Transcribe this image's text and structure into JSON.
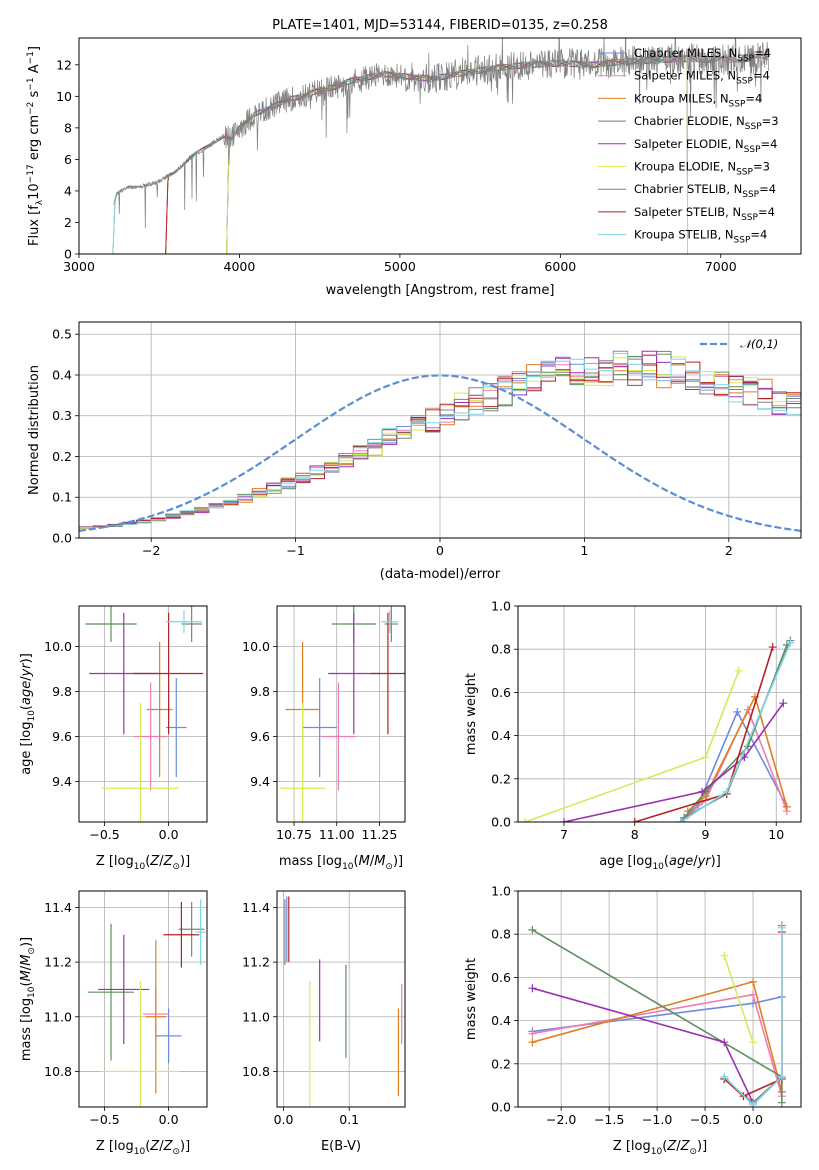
{
  "colors": {
    "chabrier_miles": "#6a8dde",
    "salpeter_miles": "#ee7db4",
    "kroupa_miles": "#e07f22",
    "chabrier_elodie": "#5e8f5e",
    "salpeter_elodie": "#9b30b4",
    "kroupa_elodie": "#d2ec5a",
    "chabrier_stelib": "#808080",
    "salpeter_stelib": "#b22222",
    "kroupa_stelib": "#7fd6e3",
    "normal": "#5b8fd4"
  },
  "chart_data": [
    {
      "id": "spectrum",
      "type": "line",
      "title": "PLATE=1401, MJD=53144, FIBERID=0135, z=0.258",
      "xlabel": "wavelength [Angstrom, rest frame]",
      "ylabel": "Flux [f",
      "ylabel_parts": {
        "pre": "Flux [f",
        "lam": "λ",
        "mid": "10",
        "exp": "−17",
        "post": " erg cm",
        "exp2": "−2",
        "post2": " s",
        "exp3": "−1",
        "post3": " A",
        "exp4": "−1",
        "end": "]"
      },
      "xlim": [
        3000,
        7500
      ],
      "ylim": [
        0,
        13.7
      ],
      "xticks": [
        "3000",
        "4000",
        "5000",
        "6000",
        "7000"
      ],
      "yticks": [
        "0",
        "2",
        "4",
        "6",
        "8",
        "10",
        "12"
      ],
      "data_continuum": [
        [
          3210,
          0
        ],
        [
          3215,
          3.2
        ],
        [
          3240,
          3.9
        ],
        [
          3300,
          4.2
        ],
        [
          3400,
          4.3
        ],
        [
          3500,
          4.6
        ],
        [
          3600,
          5.2
        ],
        [
          3700,
          6.2
        ],
        [
          3800,
          6.8
        ],
        [
          3900,
          7.5
        ],
        [
          3950,
          7.3
        ],
        [
          4000,
          8.0
        ],
        [
          4100,
          8.9
        ],
        [
          4200,
          9.3
        ],
        [
          4300,
          9.8
        ],
        [
          4400,
          10.0
        ],
        [
          4500,
          10.4
        ],
        [
          4600,
          10.6
        ],
        [
          4700,
          11.0
        ],
        [
          4800,
          11.2
        ],
        [
          4900,
          11.4
        ],
        [
          5000,
          11.3
        ],
        [
          5200,
          11.1
        ],
        [
          5400,
          11.5
        ],
        [
          5600,
          11.8
        ],
        [
          5800,
          12.0
        ],
        [
          6000,
          12.1
        ],
        [
          6200,
          12.0
        ],
        [
          6400,
          12.2
        ],
        [
          6600,
          12.3
        ],
        [
          6800,
          12.4
        ],
        [
          7000,
          12.3
        ],
        [
          7200,
          12.4
        ],
        [
          7300,
          12.5
        ]
      ],
      "series": [
        {
          "name": "Chabrier MILES",
          "nssp": "4",
          "color_key": "chabrier_miles",
          "start": 3540
        },
        {
          "name": "Salpeter MILES",
          "nssp": "4",
          "color_key": "salpeter_miles",
          "start": 3540
        },
        {
          "name": "Kroupa MILES",
          "nssp": "4",
          "color_key": "kroupa_miles",
          "start": 3540
        },
        {
          "name": "Chabrier ELODIE",
          "nssp": "3",
          "color_key": "chabrier_elodie",
          "start": 3920,
          "end": 6790
        },
        {
          "name": "Salpeter ELODIE",
          "nssp": "4",
          "color_key": "salpeter_elodie",
          "start": 3920,
          "end": 6790
        },
        {
          "name": "Kroupa ELODIE",
          "nssp": "3",
          "color_key": "kroupa_elodie",
          "start": 3920,
          "end": 6790
        },
        {
          "name": "Chabrier STELIB",
          "nssp": "4",
          "color_key": "chabrier_stelib",
          "start": 3210
        },
        {
          "name": "Salpeter STELIB",
          "nssp": "4",
          "color_key": "salpeter_stelib",
          "start": 3540
        },
        {
          "name": "Kroupa STELIB",
          "nssp": "4",
          "color_key": "kroupa_stelib",
          "start": 3210
        }
      ],
      "legend_loc": "lower-right"
    },
    {
      "id": "residuals",
      "type": "histogram",
      "xlabel": "(data-model)/error",
      "ylabel": "Normed distribution",
      "xlim": [
        -2.5,
        2.5
      ],
      "ylim": [
        0,
        0.53
      ],
      "xticks": [
        "−2",
        "−1",
        "0",
        "1",
        "2"
      ],
      "yticks": [
        "0.0",
        "0.1",
        "0.2",
        "0.3",
        "0.4",
        "0.5"
      ],
      "bin_width": 0.1,
      "base_profile": [
        0.025,
        0.028,
        0.031,
        0.036,
        0.041,
        0.047,
        0.054,
        0.061,
        0.069,
        0.078,
        0.088,
        0.098,
        0.11,
        0.122,
        0.135,
        0.149,
        0.163,
        0.178,
        0.194,
        0.21,
        0.226,
        0.243,
        0.259,
        0.276,
        0.292,
        0.308,
        0.323,
        0.337,
        0.351,
        0.364,
        0.375,
        0.386,
        0.395,
        0.403,
        0.409,
        0.414,
        0.417,
        0.419,
        0.419,
        0.417,
        0.414,
        0.409,
        0.403,
        0.395,
        0.386,
        0.375,
        0.364,
        0.351,
        0.337,
        0.323
      ],
      "legend": "𝒩(0,1)",
      "legend_loc": "upper-right"
    },
    {
      "id": "age_vs_Z",
      "type": "errorbar",
      "xlabel": "Z [log",
      "ylabel": "age  [log",
      "xlim": [
        -0.7,
        0.3
      ],
      "ylim": [
        9.22,
        10.18
      ],
      "xticks": [
        "−0.5",
        "0.0"
      ],
      "yticks": [
        "9.4",
        "9.6",
        "9.8",
        "10.0"
      ],
      "points": [
        {
          "color_key": "chabrier_miles",
          "x": 0.06,
          "xerr": 0.08,
          "y": 9.64,
          "yerr": 0.22
        },
        {
          "color_key": "salpeter_miles",
          "x": -0.14,
          "xerr": 0.13,
          "y": 9.6,
          "yerr": 0.24
        },
        {
          "color_key": "kroupa_miles",
          "x": -0.07,
          "xerr": 0.1,
          "y": 9.72,
          "yerr": 0.3
        },
        {
          "color_key": "chabrier_elodie",
          "x": -0.45,
          "xerr": 0.2,
          "y": 10.1,
          "yerr": 0.08
        },
        {
          "color_key": "salpeter_elodie",
          "x": -0.35,
          "xerr": 0.27,
          "y": 9.88,
          "yerr": 0.27
        },
        {
          "color_key": "kroupa_elodie",
          "x": -0.22,
          "xerr": 0.3,
          "y": 9.37,
          "yerr": 0.38
        },
        {
          "color_key": "chabrier_stelib",
          "x": 0.18,
          "xerr": 0.08,
          "y": 10.1,
          "yerr": 0.08
        },
        {
          "color_key": "salpeter_stelib",
          "x": 0.0,
          "xerr": 0.27,
          "y": 9.88,
          "yerr": 0.27
        },
        {
          "color_key": "kroupa_stelib",
          "x": 0.12,
          "xerr": 0.14,
          "y": 10.11,
          "yerr": 0.05
        }
      ]
    },
    {
      "id": "age_vs_mass",
      "type": "errorbar",
      "xlabel": "mass [log",
      "xlim": [
        10.65,
        11.4
      ],
      "ylim": [
        9.22,
        10.18
      ],
      "xticks": [
        "10.75",
        "11.00",
        "11.25"
      ],
      "yticks": [
        "9.4",
        "9.6",
        "9.8",
        "10.0"
      ],
      "points": [
        {
          "color_key": "chabrier_miles",
          "x": 10.9,
          "xerr": 0.1,
          "y": 9.64,
          "yerr": 0.22
        },
        {
          "color_key": "salpeter_miles",
          "x": 11.01,
          "xerr": 0.1,
          "y": 9.6,
          "yerr": 0.24
        },
        {
          "color_key": "kroupa_miles",
          "x": 10.8,
          "xerr": 0.1,
          "y": 9.72,
          "yerr": 0.3
        },
        {
          "color_key": "chabrier_elodie",
          "x": 11.1,
          "xerr": 0.13,
          "y": 10.1,
          "yerr": 0.08
        },
        {
          "color_key": "salpeter_elodie",
          "x": 11.1,
          "xerr": 0.15,
          "y": 9.88,
          "yerr": 0.27
        },
        {
          "color_key": "kroupa_elodie",
          "x": 10.8,
          "xerr": 0.13,
          "y": 9.37,
          "yerr": 0.38
        },
        {
          "color_key": "chabrier_stelib",
          "x": 11.32,
          "xerr": 0.04,
          "y": 10.1,
          "yerr": 0.08
        },
        {
          "color_key": "salpeter_stelib",
          "x": 11.3,
          "xerr": 0.1,
          "y": 9.88,
          "yerr": 0.27
        },
        {
          "color_key": "kroupa_stelib",
          "x": 11.31,
          "xerr": 0.05,
          "y": 10.11,
          "yerr": 0.05
        }
      ]
    },
    {
      "id": "weight_vs_age",
      "type": "line",
      "xlabel": "age  [log",
      "ylabel": "mass weight",
      "xlim": [
        6.35,
        10.35
      ],
      "ylim": [
        0,
        1.0
      ],
      "xticks": [
        "7",
        "8",
        "9",
        "10"
      ],
      "yticks": [
        "0.0",
        "0.2",
        "0.4",
        "0.6",
        "0.8",
        "1.0"
      ],
      "series": [
        {
          "color_key": "chabrier_miles",
          "x": [
            8.7,
            8.9,
            9.45,
            10.15
          ],
          "y": [
            0.02,
            0.08,
            0.51,
            0.07
          ]
        },
        {
          "color_key": "salpeter_miles",
          "x": [
            8.75,
            9.0,
            9.6,
            10.15
          ],
          "y": [
            0.03,
            0.1,
            0.52,
            0.05
          ]
        },
        {
          "color_key": "kroupa_miles",
          "x": [
            8.75,
            9.0,
            9.7,
            10.15
          ],
          "y": [
            0.05,
            0.12,
            0.58,
            0.07
          ]
        },
        {
          "color_key": "chabrier_elodie",
          "x": [
            8.65,
            9.0,
            9.6,
            10.15
          ],
          "y": [
            0.0,
            0.14,
            0.35,
            0.82
          ]
        },
        {
          "color_key": "salpeter_elodie",
          "x": [
            7.0,
            8.95,
            9.55,
            10.1
          ],
          "y": [
            0.0,
            0.14,
            0.3,
            0.55
          ]
        },
        {
          "color_key": "kroupa_elodie",
          "x": [
            6.45,
            9.0,
            9.47
          ],
          "y": [
            0.0,
            0.3,
            0.7
          ]
        },
        {
          "color_key": "chabrier_stelib",
          "x": [
            8.7,
            9.3,
            10.2
          ],
          "y": [
            0.02,
            0.13,
            0.84
          ]
        },
        {
          "color_key": "salpeter_stelib",
          "x": [
            8.0,
            9.3,
            9.95
          ],
          "y": [
            0.0,
            0.13,
            0.81
          ]
        },
        {
          "color_key": "kroupa_stelib",
          "x": [
            8.65,
            9.3,
            10.2
          ],
          "y": [
            0.0,
            0.14,
            0.83
          ]
        }
      ]
    },
    {
      "id": "mass_vs_Z",
      "type": "errorbar",
      "xlabel": "Z [log",
      "ylabel": "mass [log",
      "xlim": [
        -0.7,
        0.3
      ],
      "ylim": [
        10.67,
        11.46
      ],
      "xticks": [
        "−0.5",
        "0.0"
      ],
      "yticks": [
        "10.8",
        "11.0",
        "11.2",
        "11.4"
      ],
      "points": [
        {
          "color_key": "chabrier_miles",
          "x": 0.0,
          "xerr": 0.1,
          "y": 10.93,
          "yerr": 0.1
        },
        {
          "color_key": "salpeter_miles",
          "x": -0.1,
          "xerr": 0.1,
          "y": 11.01,
          "yerr": 0.1
        },
        {
          "color_key": "kroupa_miles",
          "x": -0.1,
          "xerr": 0.08,
          "y": 11.0,
          "yerr": 0.28
        },
        {
          "color_key": "chabrier_elodie",
          "x": -0.45,
          "xerr": 0.18,
          "y": 11.09,
          "yerr": 0.25
        },
        {
          "color_key": "salpeter_elodie",
          "x": -0.35,
          "xerr": 0.2,
          "y": 11.1,
          "yerr": 0.2
        },
        {
          "color_key": "kroupa_elodie",
          "x": -0.22,
          "xerr": 0.3,
          "y": 10.8,
          "yerr": 0.33
        },
        {
          "color_key": "chabrier_stelib",
          "x": 0.18,
          "xerr": 0.1,
          "y": 11.32,
          "yerr": 0.1
        },
        {
          "color_key": "salpeter_stelib",
          "x": 0.1,
          "xerr": 0.14,
          "y": 11.3,
          "yerr": 0.12
        },
        {
          "color_key": "kroupa_stelib",
          "x": 0.25,
          "xerr": 0.04,
          "y": 11.31,
          "yerr": 0.12
        }
      ]
    },
    {
      "id": "mass_vs_ebv",
      "type": "errorbar",
      "xlabel": "E(B-V)",
      "xlim": [
        -0.01,
        0.185
      ],
      "ylim": [
        10.67,
        11.46
      ],
      "xticks": [
        "0.0",
        "0.1"
      ],
      "yticks": [
        "10.8",
        "11.0",
        "11.2",
        "11.4"
      ],
      "points": [
        {
          "color_key": "chabrier_miles",
          "x": 0.005,
          "xerr": 0,
          "y": 11.32,
          "yerr": 0.12
        },
        {
          "color_key": "salpeter_miles",
          "x": 0.18,
          "xerr": 0,
          "y": 11.01,
          "yerr": 0.11
        },
        {
          "color_key": "kroupa_miles",
          "x": 0.175,
          "xerr": 0,
          "y": 10.87,
          "yerr": 0.16
        },
        {
          "color_key": "chabrier_elodie",
          "x": 0.095,
          "xerr": 0,
          "y": 11.02,
          "yerr": 0.17
        },
        {
          "color_key": "salpeter_elodie",
          "x": 0.055,
          "xerr": 0,
          "y": 11.06,
          "yerr": 0.15
        },
        {
          "color_key": "kroupa_elodie",
          "x": 0.04,
          "xerr": 0,
          "y": 10.87,
          "yerr": 0.26
        },
        {
          "color_key": "chabrier_stelib",
          "x": 0.002,
          "xerr": 0,
          "y": 11.31,
          "yerr": 0.12
        },
        {
          "color_key": "salpeter_stelib",
          "x": 0.008,
          "xerr": 0,
          "y": 11.32,
          "yerr": 0.12
        },
        {
          "color_key": "kroupa_stelib",
          "x": 0.003,
          "xerr": 0,
          "y": 11.3,
          "yerr": 0.1
        }
      ]
    },
    {
      "id": "weight_vs_Z",
      "type": "line",
      "xlabel": "Z [log",
      "ylabel": "mass weight",
      "xlim": [
        -2.45,
        0.5
      ],
      "ylim": [
        0,
        1.0
      ],
      "xticks": [
        "−2.0",
        "−1.5",
        "−1.0",
        "−0.5",
        "0.0"
      ],
      "yticks": [
        "0.0",
        "0.2",
        "0.4",
        "0.6",
        "0.8",
        "1.0"
      ],
      "series": [
        {
          "color_key": "chabrier_miles",
          "x": [
            -2.3,
            0.0,
            0.3,
            0.3
          ],
          "y": [
            0.35,
            0.48,
            0.51,
            0.07
          ]
        },
        {
          "color_key": "salpeter_miles",
          "x": [
            -2.3,
            0.0,
            0.3
          ],
          "y": [
            0.34,
            0.52,
            0.05
          ]
        },
        {
          "color_key": "kroupa_miles",
          "x": [
            -2.3,
            0.0,
            0.3
          ],
          "y": [
            0.3,
            0.58,
            0.07
          ]
        },
        {
          "color_key": "chabrier_elodie",
          "x": [
            -2.3,
            0.3,
            0.3
          ],
          "y": [
            0.82,
            0.14,
            0.02
          ]
        },
        {
          "color_key": "salpeter_elodie",
          "x": [
            -2.3,
            -0.3,
            0.0,
            0.3
          ],
          "y": [
            0.55,
            0.3,
            0.02,
            0.14
          ]
        },
        {
          "color_key": "kroupa_elodie",
          "x": [
            -0.3,
            0.0
          ],
          "y": [
            0.7,
            0.3
          ]
        },
        {
          "color_key": "chabrier_stelib",
          "x": [
            -0.3,
            0.0,
            0.3,
            0.3
          ],
          "y": [
            0.13,
            0.02,
            0.14,
            0.84
          ]
        },
        {
          "color_key": "salpeter_stelib",
          "x": [
            -0.3,
            -0.1,
            0.3,
            0.3
          ],
          "y": [
            0.13,
            0.05,
            0.13,
            0.81
          ]
        },
        {
          "color_key": "kroupa_stelib",
          "x": [
            -0.3,
            0.0,
            0.3,
            0.3
          ],
          "y": [
            0.14,
            0.01,
            0.14,
            0.83
          ]
        }
      ]
    }
  ]
}
